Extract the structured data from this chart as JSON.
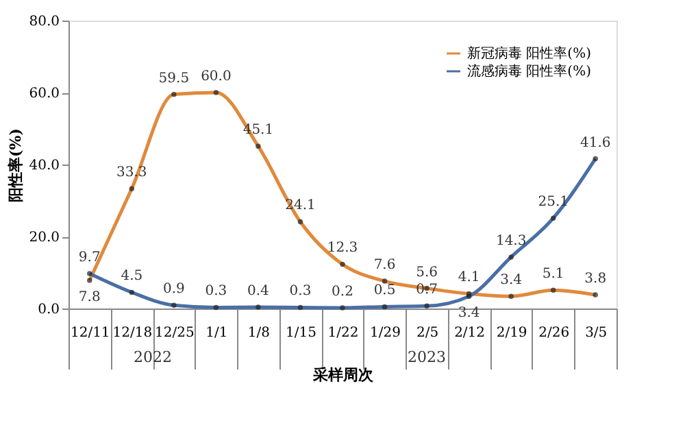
{
  "chart_data": {
    "type": "line",
    "xlabel": "采样周次",
    "ylabel": "阳性率(%)",
    "categories": [
      "12/11",
      "12/18",
      "12/25",
      "1/1",
      "1/8",
      "1/15",
      "1/22",
      "1/29",
      "2/5",
      "2/12",
      "2/19",
      "2/26",
      "3/5"
    ],
    "series": [
      {
        "name": "新冠病毒 阳性率(%)",
        "color": "#e08a3c",
        "values": [
          7.8,
          33.3,
          59.5,
          60.0,
          45.1,
          24.1,
          12.3,
          7.6,
          5.6,
          4.1,
          3.4,
          5.1,
          3.8
        ],
        "value_labels": [
          "7.8",
          "33.3",
          "59.5",
          "60.0",
          "45.1",
          "24.1",
          "12.3",
          "7.6",
          "5.6",
          "4.1",
          "3.4",
          "5.1",
          "3.8"
        ]
      },
      {
        "name": "流感病毒 阳性率(%)",
        "color": "#4a6fa5",
        "values": [
          9.7,
          4.5,
          0.9,
          0.3,
          0.4,
          0.3,
          0.2,
          0.5,
          0.7,
          3.4,
          14.3,
          25.1,
          41.6
        ],
        "value_labels": [
          "9.7",
          "4.5",
          "0.9",
          "0.3",
          "0.4",
          "0.3",
          "0.2",
          "0.5",
          "0.7",
          "3.4",
          "14.3",
          "25.1",
          "41.6"
        ]
      }
    ],
    "ylim": [
      0,
      80
    ],
    "yticks": [
      {
        "value": 0,
        "label": "0.0"
      },
      {
        "value": 20,
        "label": "20.0"
      },
      {
        "value": 40,
        "label": "40.0"
      },
      {
        "value": 60,
        "label": "60.0"
      },
      {
        "value": 80,
        "label": "80.0"
      }
    ],
    "marker": "circle",
    "line_style": "solid",
    "grid": false,
    "legend": "top right",
    "annotations": [
      "2022",
      "2023"
    ]
  }
}
